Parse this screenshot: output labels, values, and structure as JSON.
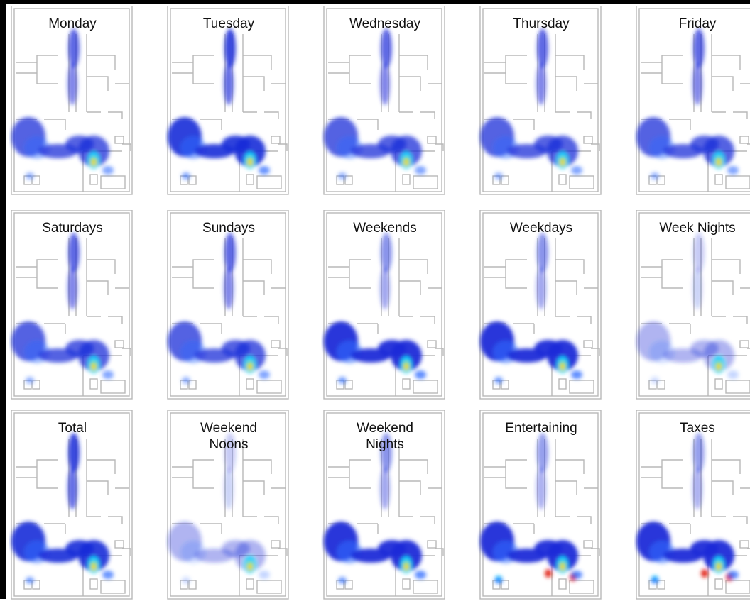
{
  "panels": [
    {
      "title": "Monday",
      "blue": "medium"
    },
    {
      "title": "Tuesday",
      "blue": "high"
    },
    {
      "title": "Wednesday",
      "blue": "medium"
    },
    {
      "title": "Thursday",
      "blue": "medium"
    },
    {
      "title": "Friday",
      "blue": "medium"
    },
    {
      "title": "Saturdays",
      "blue": "medium"
    },
    {
      "title": "Sundays",
      "blue": "medium"
    },
    {
      "title": "Weekends",
      "blue": "dense"
    },
    {
      "title": "Weekdays",
      "blue": "dense"
    },
    {
      "title": "Week Nights",
      "blue": "light"
    },
    {
      "title": "Total",
      "blue": "high"
    },
    {
      "title": "Weekend\nNoons",
      "blue": "light"
    },
    {
      "title": "Weekend\nNights",
      "blue": "dense"
    },
    {
      "title": "Entertaining",
      "blue": "dense-hot"
    },
    {
      "title": "Taxes",
      "blue": "dense-hot"
    }
  ],
  "colors": {
    "low": "#1a2bd8",
    "mid": "#2d6bff",
    "light": "#8fa0f0",
    "hot1": "#00d4ff",
    "hot2": "#9ce25a",
    "hot3": "#ffd400",
    "hot4": "#e02010",
    "wall": "#b8b8b8"
  }
}
